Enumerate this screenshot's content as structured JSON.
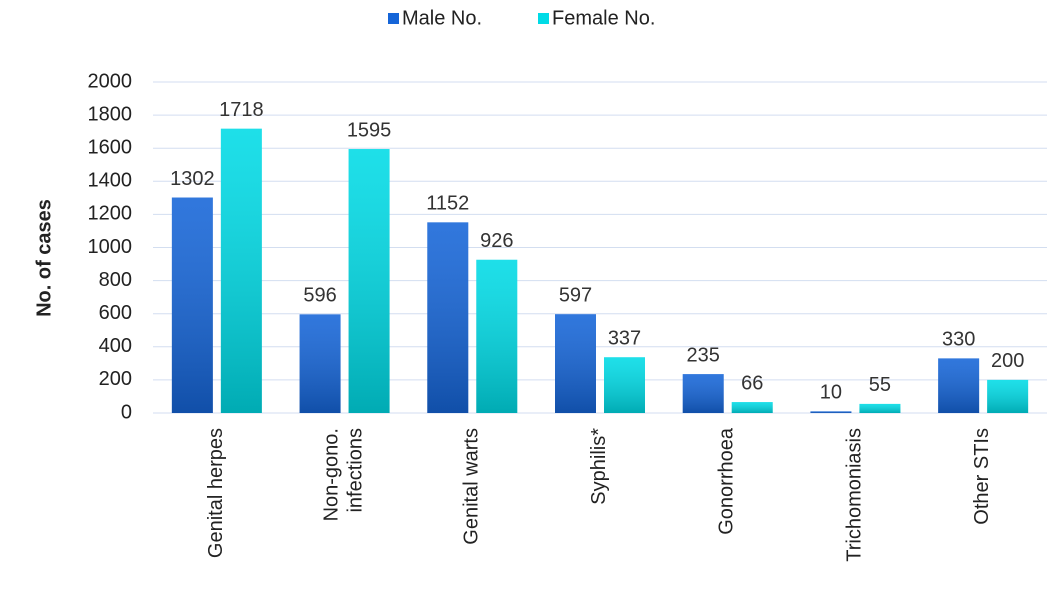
{
  "chart_data": {
    "type": "bar",
    "categories": [
      "Genital herpes",
      "Non-gono.\ninfections",
      "Genital warts",
      "Syphilis*",
      "Gonorrhoea",
      "Trichomoniasis",
      "Other STIs"
    ],
    "series": [
      {
        "name": "Male No.",
        "color": "#1565d8",
        "values": [
          1302,
          596,
          1152,
          597,
          235,
          10,
          330
        ]
      },
      {
        "name": "Female No.",
        "color": "#00dbe6",
        "values": [
          1718,
          1595,
          926,
          337,
          66,
          55,
          200
        ]
      }
    ],
    "ylabel": "No. of cases",
    "ylim": [
      0,
      2000
    ],
    "yticks": [
      0,
      200,
      400,
      600,
      800,
      1000,
      1200,
      1400,
      1600,
      1800,
      2000
    ],
    "grid": true,
    "legend": "top"
  }
}
